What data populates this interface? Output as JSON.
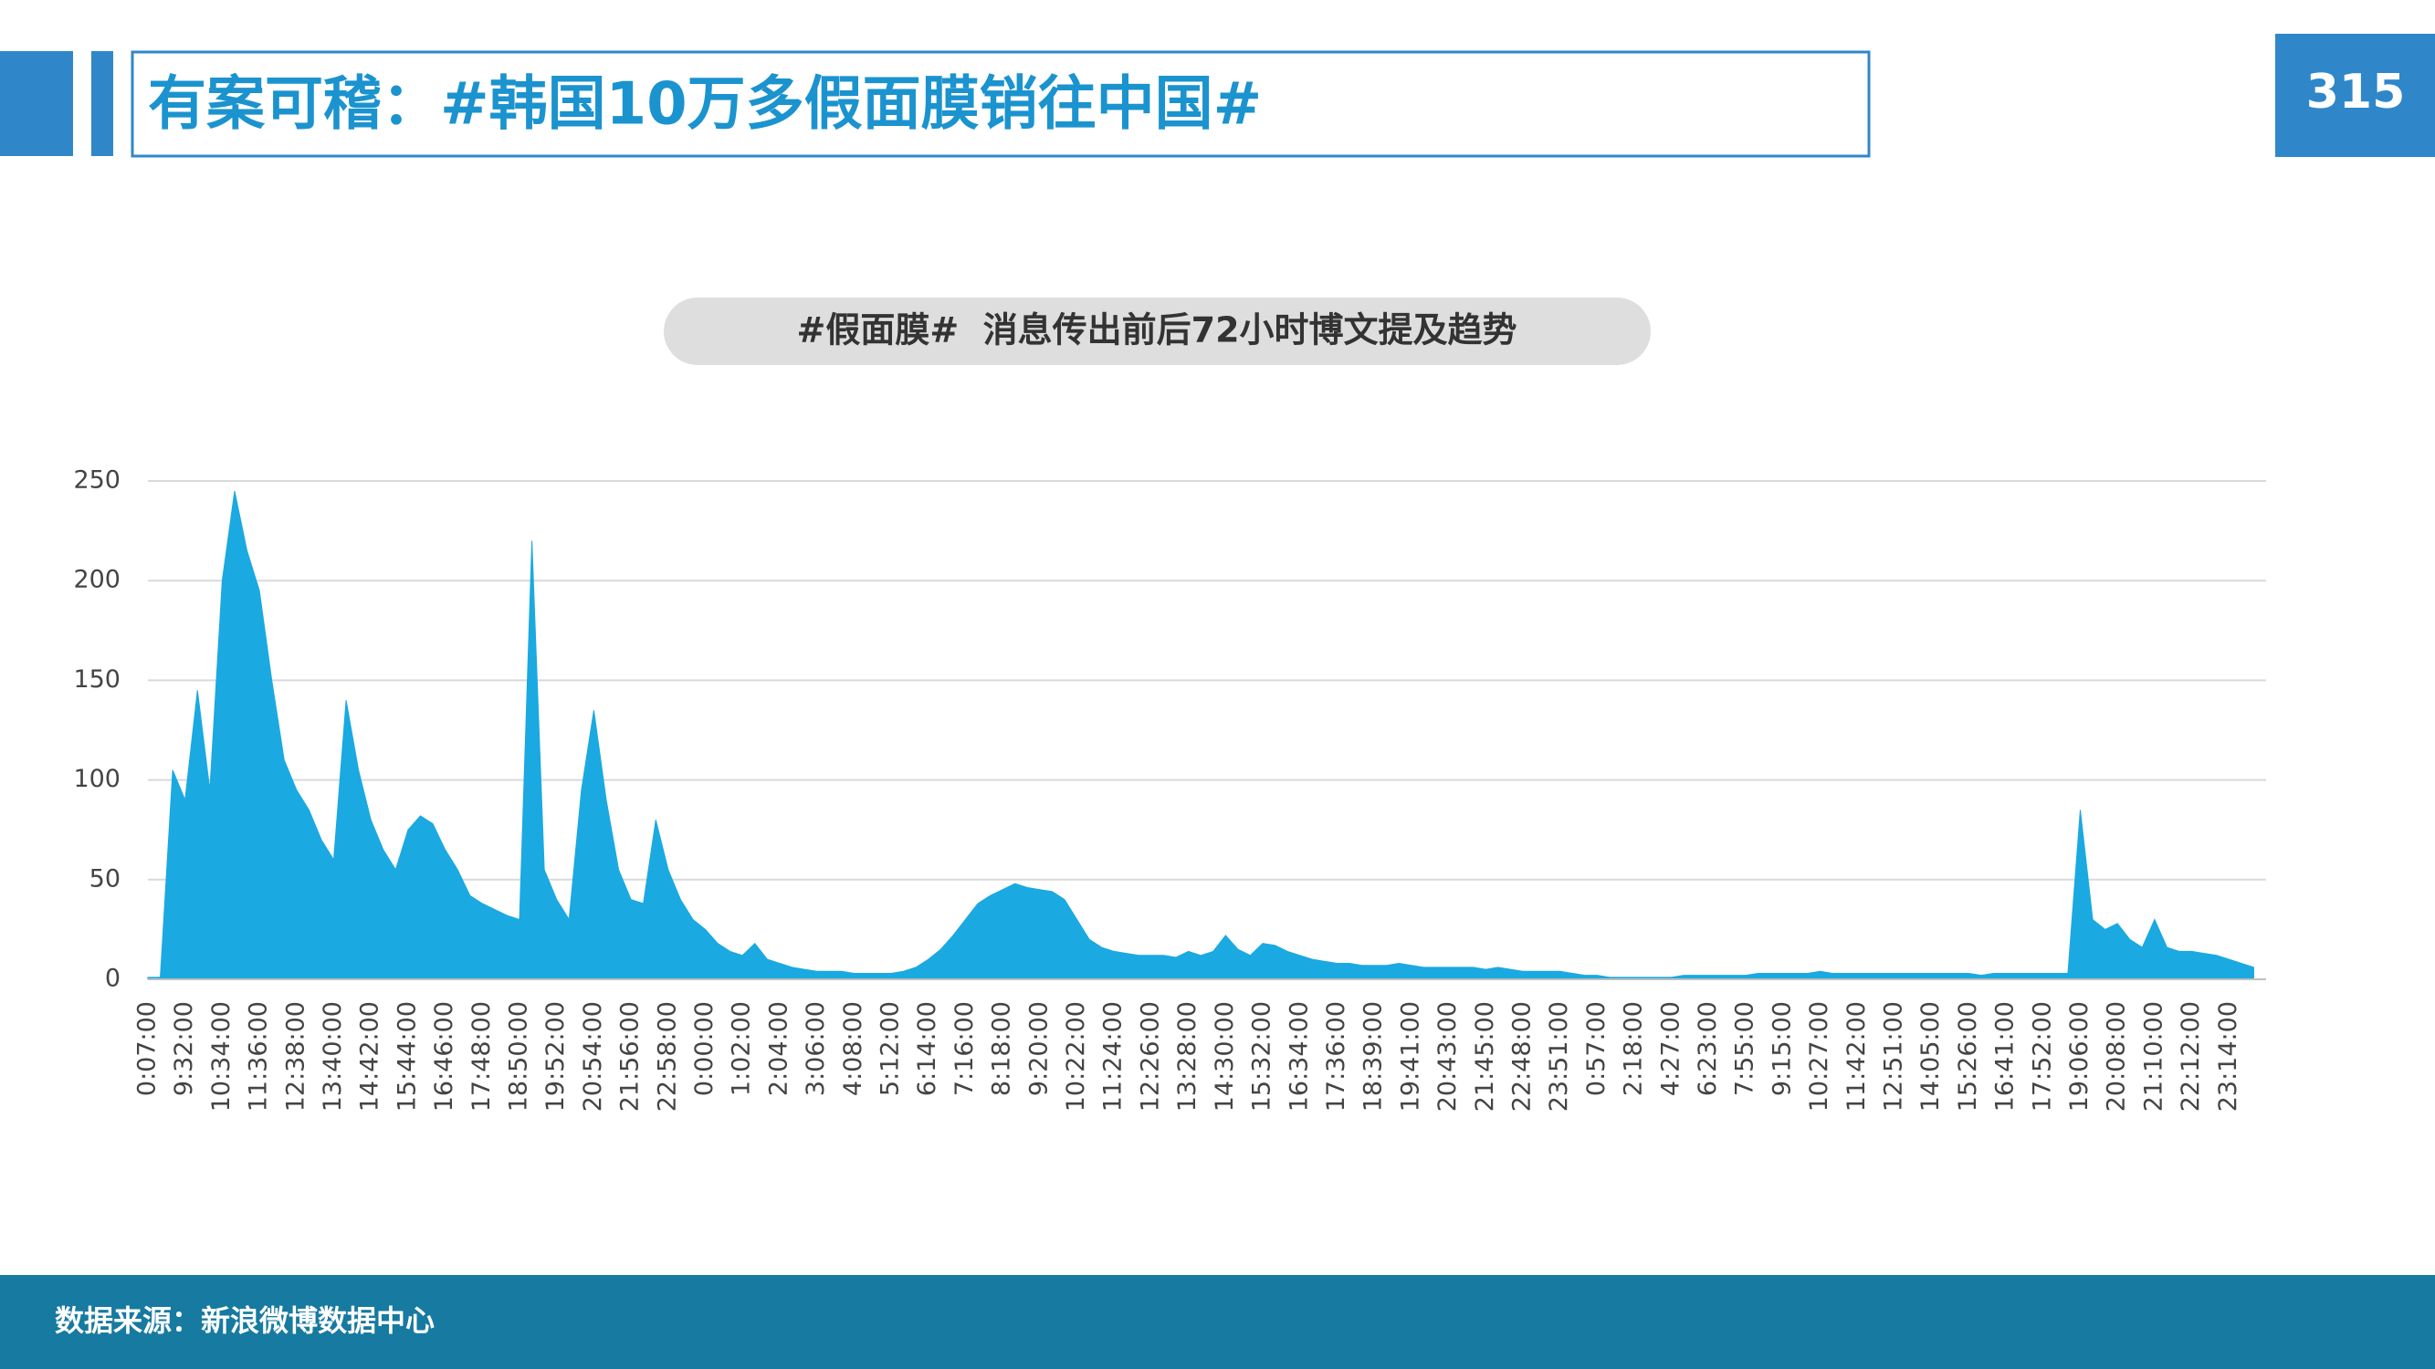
{
  "header": {
    "title": "有案可稽：#韩国10万多假面膜销往中国#",
    "page_number": "315"
  },
  "footer": {
    "source": "数据来源：新浪微博数据中心"
  },
  "chart_data": {
    "type": "area",
    "title": "#假面膜#  消息传出前后72小时博文提及趋势",
    "categories": [
      "0:07:00",
      null,
      null,
      "9:32:00",
      null,
      null,
      "10:34:00",
      null,
      null,
      "11:36:00",
      null,
      null,
      "12:38:00",
      null,
      null,
      "13:40:00",
      null,
      null,
      "14:42:00",
      null,
      null,
      "15:44:00",
      null,
      null,
      "16:46:00",
      null,
      null,
      "17:48:00",
      null,
      null,
      "18:50:00",
      null,
      null,
      "19:52:00",
      null,
      null,
      "20:54:00",
      null,
      null,
      "21:56:00",
      null,
      null,
      "22:58:00",
      null,
      null,
      "0:00:00",
      null,
      null,
      "1:02:00",
      null,
      null,
      "2:04:00",
      null,
      null,
      "3:06:00",
      null,
      null,
      "4:08:00",
      null,
      null,
      "5:12:00",
      null,
      null,
      "6:14:00",
      null,
      null,
      "7:16:00",
      null,
      null,
      "8:18:00",
      null,
      null,
      "9:20:00",
      null,
      null,
      "10:22:00",
      null,
      null,
      "11:24:00",
      null,
      null,
      "12:26:00",
      null,
      null,
      "13:28:00",
      null,
      null,
      "14:30:00",
      null,
      null,
      "15:32:00",
      null,
      null,
      "16:34:00",
      null,
      null,
      "17:36:00",
      null,
      null,
      "18:39:00",
      null,
      null,
      "19:41:00",
      null,
      null,
      "20:43:00",
      null,
      null,
      "21:45:00",
      null,
      null,
      "22:48:00",
      null,
      null,
      "23:51:00",
      null,
      null,
      "0:57:00",
      null,
      null,
      "2:18:00",
      null,
      null,
      "4:27:00",
      null,
      null,
      "6:23:00",
      null,
      null,
      "7:55:00",
      null,
      null,
      "9:15:00",
      null,
      null,
      "10:27:00",
      null,
      null,
      "11:42:00",
      null,
      null,
      "12:51:00",
      null,
      null,
      "14:05:00",
      null,
      null,
      "15:26:00",
      null,
      null,
      "16:41:00",
      null,
      null,
      "17:52:00",
      null,
      null,
      "19:06:00",
      null,
      null,
      "20:08:00",
      null,
      null,
      "21:10:00",
      null,
      null,
      "22:12:00",
      null,
      null,
      "23:14:00",
      null,
      null
    ],
    "values": [
      1,
      1,
      105,
      90,
      145,
      95,
      200,
      245,
      215,
      195,
      150,
      110,
      95,
      85,
      70,
      60,
      140,
      105,
      80,
      65,
      55,
      75,
      82,
      78,
      65,
      55,
      42,
      38,
      35,
      32,
      30,
      220,
      55,
      40,
      30,
      95,
      135,
      90,
      55,
      40,
      38,
      80,
      55,
      40,
      30,
      25,
      18,
      14,
      12,
      18,
      10,
      8,
      6,
      5,
      4,
      4,
      4,
      3,
      3,
      3,
      3,
      4,
      6,
      10,
      15,
      22,
      30,
      38,
      42,
      45,
      48,
      46,
      45,
      44,
      40,
      30,
      20,
      16,
      14,
      13,
      12,
      12,
      12,
      11,
      14,
      12,
      14,
      22,
      15,
      12,
      18,
      17,
      14,
      12,
      10,
      9,
      8,
      8,
      7,
      7,
      7,
      8,
      7,
      6,
      6,
      6,
      6,
      6,
      5,
      6,
      5,
      4,
      4,
      4,
      4,
      3,
      2,
      2,
      1,
      1,
      1,
      1,
      1,
      1,
      2,
      2,
      2,
      2,
      2,
      2,
      3,
      3,
      3,
      3,
      3,
      4,
      3,
      3,
      3,
      3,
      3,
      3,
      3,
      3,
      3,
      3,
      3,
      3,
      2,
      3,
      3,
      3,
      3,
      3,
      3,
      3,
      85,
      30,
      25,
      28,
      20,
      16,
      30,
      16,
      14,
      14,
      13,
      12,
      10,
      8,
      6
    ],
    "color": "#1ba9e1",
    "ylim": [
      0,
      250
    ],
    "yticks": [
      0,
      50,
      100,
      150,
      200,
      250
    ],
    "grid": true
  }
}
